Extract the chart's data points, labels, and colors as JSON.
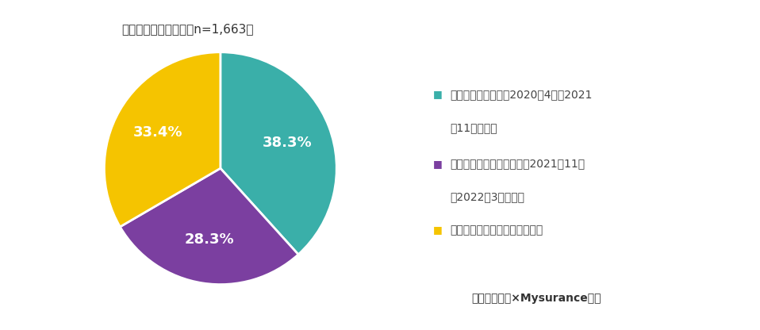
{
  "title": "修学旅行の実施状況（n=1,663）",
  "slices": [
    38.3,
    28.3,
    33.4
  ],
  "colors": [
    "#3aafa9",
    "#7b3fa0",
    "#f5c400"
  ],
  "labels_on_pie": [
    "38.3%",
    "28.3%",
    "33.4%"
  ],
  "legend_labels_line1": [
    "すでに実施された（2020年4月〜2021",
    "これから実施される予定（2021年11月",
    "実施予定だったが中止になった"
  ],
  "legend_labels_line2": [
    "年11月まで）",
    "〜2022年3月まで）",
    ""
  ],
  "legend_colors": [
    "#3aafa9",
    "#7b3fa0",
    "#f5c400"
  ],
  "footer": "損保ジャパン×Mysurance調べ",
  "background_color": "#ffffff",
  "label_fontsize": 13,
  "title_fontsize": 11,
  "legend_fontsize": 10,
  "footer_fontsize": 10
}
